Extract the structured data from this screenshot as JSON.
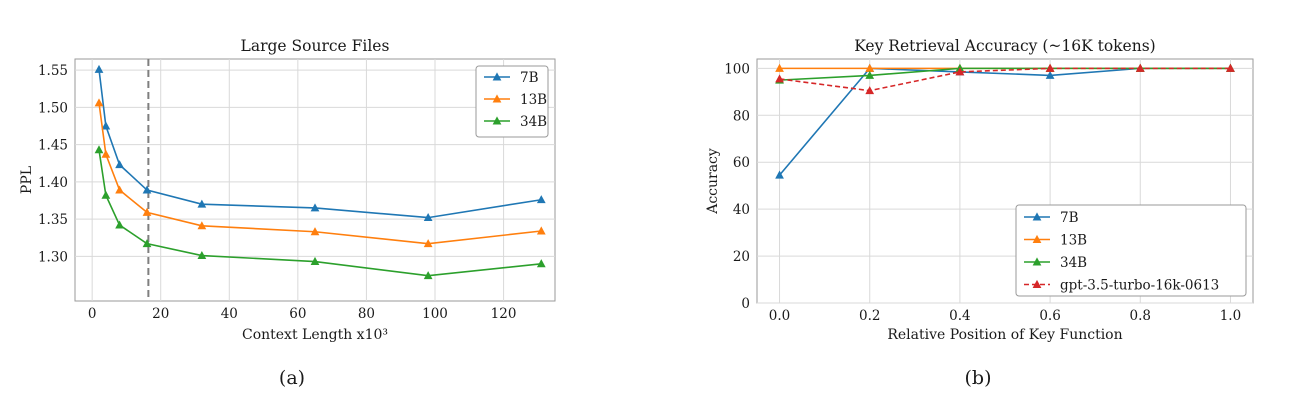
{
  "colors": {
    "7B": "#1f77b4",
    "13B": "#ff7f0e",
    "34B": "#2ca02c",
    "gpt": "#d62728",
    "vline": "#7f7f7f"
  },
  "chart_data": [
    {
      "type": "line",
      "title": "Large Source Files",
      "xlabel": "Context Length x10³",
      "ylabel": "PPL",
      "caption": "(a)",
      "xlim": [
        -5,
        135
      ],
      "ylim": [
        1.24,
        1.565
      ],
      "xticks": [
        0,
        20,
        40,
        60,
        80,
        100,
        120
      ],
      "yticks": [
        1.3,
        1.35,
        1.4,
        1.45,
        1.5,
        1.55
      ],
      "ytick_labels": [
        "1.30",
        "1.35",
        "1.40",
        "1.45",
        "1.50",
        "1.55"
      ],
      "vline_x": 16.4,
      "legend_position": "top-right",
      "grid": true,
      "x": [
        2,
        4,
        8,
        16,
        32,
        65,
        98,
        131
      ],
      "series": [
        {
          "name": "7B",
          "color_key": "7B",
          "values": [
            1.551,
            1.475,
            1.423,
            1.389,
            1.37,
            1.365,
            1.352,
            1.376
          ]
        },
        {
          "name": "13B",
          "color_key": "13B",
          "values": [
            1.506,
            1.437,
            1.389,
            1.359,
            1.341,
            1.333,
            1.317,
            1.334
          ]
        },
        {
          "name": "34B",
          "color_key": "34B",
          "values": [
            1.443,
            1.382,
            1.342,
            1.317,
            1.301,
            1.293,
            1.274,
            1.29
          ]
        }
      ]
    },
    {
      "type": "line",
      "title": "Key Retrieval Accuracy (~16K tokens)",
      "xlabel": "Relative Position of Key Function",
      "ylabel": "Accuracy",
      "caption": "(b)",
      "xlim": [
        -0.05,
        1.05
      ],
      "ylim": [
        0,
        104
      ],
      "xticks": [
        0.0,
        0.2,
        0.4,
        0.6,
        0.8,
        1.0
      ],
      "xtick_labels": [
        "0.0",
        "0.2",
        "0.4",
        "0.6",
        "0.8",
        "1.0"
      ],
      "yticks": [
        0,
        20,
        40,
        60,
        80,
        100
      ],
      "legend_position": "lower-right",
      "grid": true,
      "x": [
        0.0,
        0.2,
        0.4,
        0.6,
        0.8,
        1.0
      ],
      "series": [
        {
          "name": "7B",
          "color_key": "7B",
          "values": [
            54.5,
            100,
            98.5,
            97,
            100,
            100
          ]
        },
        {
          "name": "13B",
          "color_key": "13B",
          "values": [
            100,
            100,
            100,
            100,
            100,
            100
          ]
        },
        {
          "name": "34B",
          "color_key": "34B",
          "values": [
            95,
            97,
            100,
            100,
            100,
            100
          ]
        },
        {
          "name": "gpt-3.5-turbo-16k-0613",
          "color_key": "gpt",
          "dashed": true,
          "values": [
            95.5,
            90.5,
            98.5,
            100,
            100,
            100
          ]
        }
      ]
    }
  ]
}
